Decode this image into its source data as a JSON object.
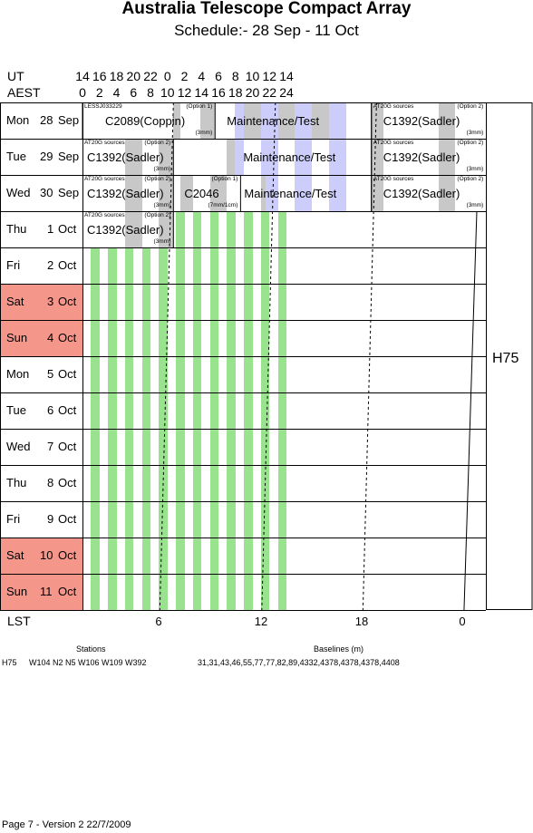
{
  "title": "Australia Telescope Compact Array",
  "subtitle": "Schedule:- 28 Sep - 11 Oct",
  "header": {
    "ut_label": "UT",
    "aest_label": "AEST",
    "ut_ticks": [
      "14",
      "16",
      "18",
      "20",
      "22",
      "0",
      "2",
      "4",
      "6",
      "8",
      "10",
      "12",
      "14"
    ],
    "aest_ticks": [
      "0",
      "2",
      "4",
      "6",
      "8",
      "10",
      "12",
      "14",
      "16",
      "18",
      "20",
      "22",
      "24"
    ]
  },
  "days": [
    {
      "day": "Mon",
      "num": "28",
      "mon": "Sep",
      "weekend": false
    },
    {
      "day": "Tue",
      "num": "29",
      "mon": "Sep",
      "weekend": false
    },
    {
      "day": "Wed",
      "num": "30",
      "mon": "Sep",
      "weekend": false
    },
    {
      "day": "Thu",
      "num": "1",
      "mon": "Oct",
      "weekend": false
    },
    {
      "day": "Fri",
      "num": "2",
      "mon": "Oct",
      "weekend": false
    },
    {
      "day": "Sat",
      "num": "3",
      "mon": "Oct",
      "weekend": true
    },
    {
      "day": "Sun",
      "num": "4",
      "mon": "Oct",
      "weekend": true
    },
    {
      "day": "Mon",
      "num": "5",
      "mon": "Oct",
      "weekend": false
    },
    {
      "day": "Tue",
      "num": "6",
      "mon": "Oct",
      "weekend": false
    },
    {
      "day": "Wed",
      "num": "7",
      "mon": "Oct",
      "weekend": false
    },
    {
      "day": "Thu",
      "num": "8",
      "mon": "Oct",
      "weekend": false
    },
    {
      "day": "Fri",
      "num": "9",
      "mon": "Oct",
      "weekend": false
    },
    {
      "day": "Sat",
      "num": "10",
      "mon": "Oct",
      "weekend": true
    },
    {
      "day": "Sun",
      "num": "11",
      "mon": "Oct",
      "weekend": true
    }
  ],
  "config_label": "H75",
  "lst": {
    "label": "LST",
    "ticks": [
      "6",
      "12",
      "18",
      "0"
    ]
  },
  "blocks": {
    "mon_a": {
      "main": "C2089(Coppin)",
      "tl": "LESSJ033229",
      "tr": "(Option 1)",
      "br": "(3mm)"
    },
    "mon_b": {
      "main": "Maintenance/Test"
    },
    "mon_c": {
      "main": "C1392(Sadler)",
      "tl": "AT20G sources",
      "tr": "(Option 2)",
      "br": "(3mm)"
    },
    "tue_a": {
      "main": "C1392(Sadler)",
      "tl": "AT20G sources",
      "tr": "(Option 2)",
      "br": "(3mm)"
    },
    "tue_b": {
      "main": "Maintenance/Test"
    },
    "tue_c": {
      "main": "C1392(Sadler)",
      "tl": "AT20G sources",
      "tr": "(Option 2)",
      "br": "(3mm)"
    },
    "wed_a": {
      "main": "C1392(Sadler)",
      "tl": "AT20G sources",
      "tr": "(Option 2)",
      "br": "(3mm)"
    },
    "wed_b": {
      "main": "C2046",
      "tr": "(Option 1)",
      "br": "(7mm/1cm)"
    },
    "wed_c": {
      "main": "Maintenance/Test"
    },
    "wed_d": {
      "main": "C1392(Sadler)",
      "tl": "AT20G sources",
      "tr": "(Option 2)",
      "br": "(3mm)"
    },
    "thu_a": {
      "main": "C1392(Sadler)",
      "tl": "AT20G sources",
      "tr": "(Option 2)",
      "br": "(3mm)"
    }
  },
  "stations": {
    "heading": "Stations",
    "config": "H75",
    "list": "W104 N2 N5 W106 W109 W392"
  },
  "baselines": {
    "heading": "Baselines (m)",
    "list": "31,31,43,46,55,77,77,82,89,4332,4378,4378,4378,4408"
  },
  "footer": "Page 7 - Version 2  22/7/2009"
}
